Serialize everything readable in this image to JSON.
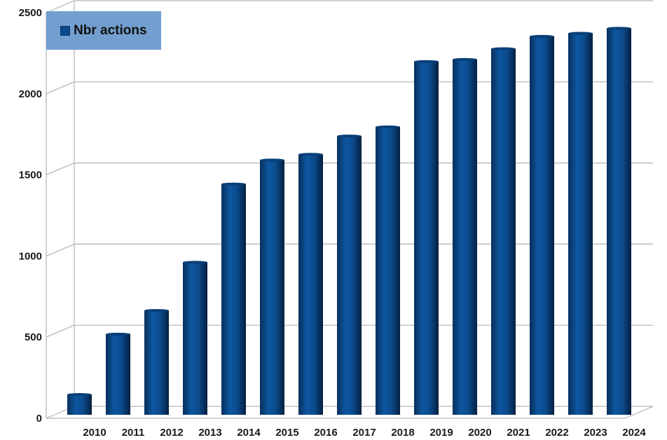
{
  "chart_data": {
    "type": "bar",
    "style": "3d-cylinder",
    "title": "",
    "xlabel": "",
    "ylabel": "",
    "ylim": [
      0,
      2500
    ],
    "yticks": [
      0,
      500,
      1000,
      1500,
      2000,
      2500
    ],
    "grid": true,
    "legend_position": "top-left",
    "categories": [
      "2010",
      "2011",
      "2012",
      "2013",
      "2014",
      "2015",
      "2016",
      "2017",
      "2018",
      "2019",
      "2020",
      "2021",
      "2022",
      "2023",
      "2024"
    ],
    "series": [
      {
        "name": "Nbr actions",
        "color": "#0b4a8b",
        "values": [
          125,
          497,
          643,
          940,
          1422,
          1570,
          1605,
          1718,
          1774,
          2177,
          2190,
          2256,
          2332,
          2351,
          2382
        ]
      }
    ]
  }
}
